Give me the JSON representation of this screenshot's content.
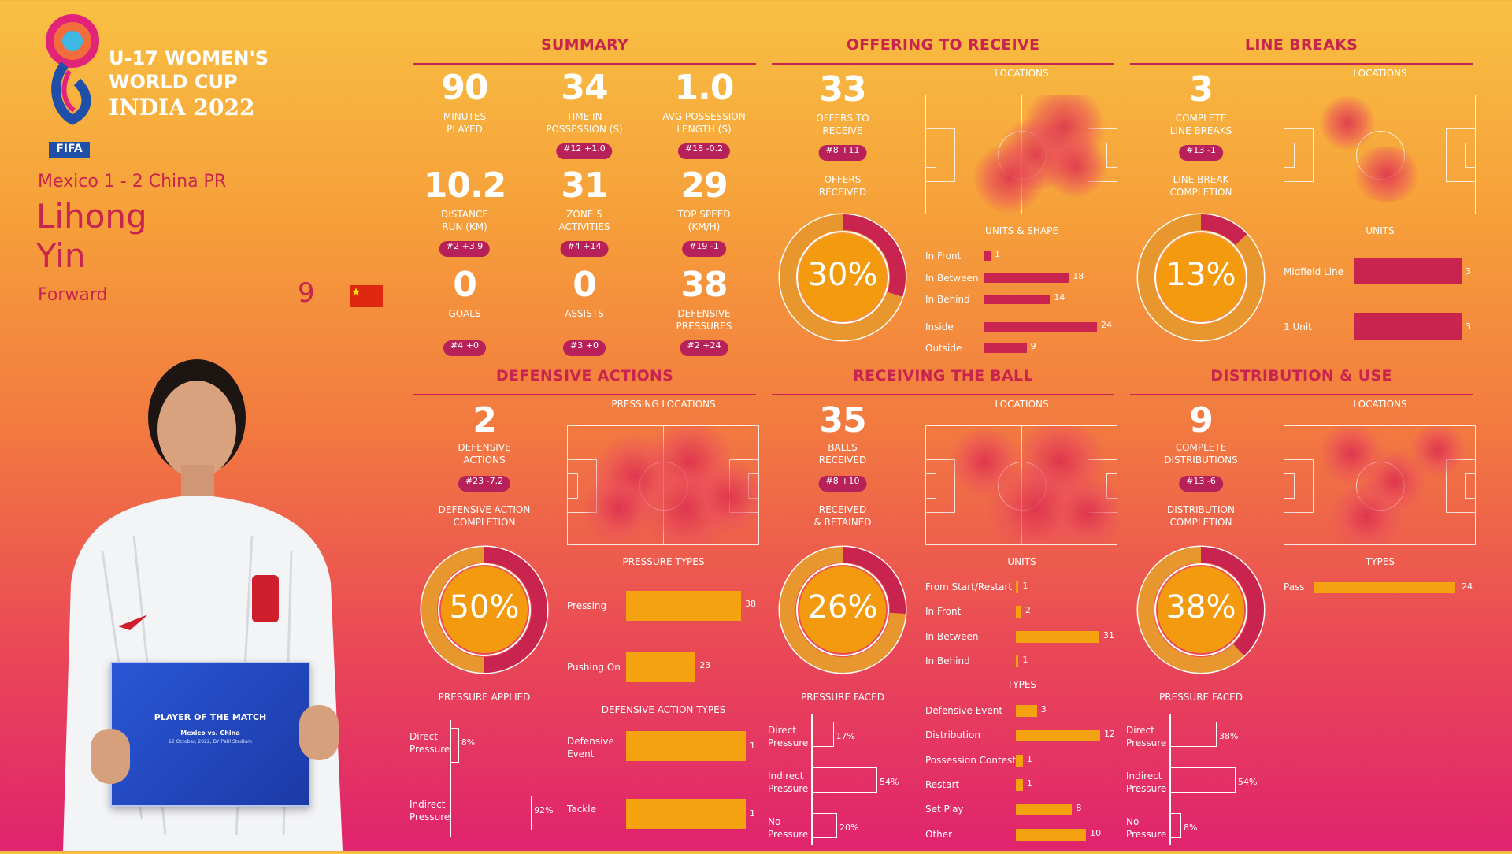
{
  "tournament": {
    "line1": "U-17 WOMEN'S",
    "line2": "WORLD CUP",
    "line3": "INDIA 2022",
    "logo_text": "FIFA"
  },
  "match": "Mexico 1 - 2 China PR",
  "player": {
    "first_name": "Lihong",
    "last_name": "Yin",
    "position": "Forward",
    "number": "9",
    "flag": "china-flag"
  },
  "potm_card": {
    "title": "PLAYER OF THE MATCH",
    "match": "Mexico vs. China",
    "date": "12 October, 2022, DY Patil Stadium"
  },
  "colors": {
    "accent": "#c8244f",
    "bar": "#f4a20f",
    "ring_magenta": "#c8244f",
    "ring_orange": "#e8962e"
  },
  "summary": {
    "title": "SUMMARY",
    "stats": [
      {
        "value": "90",
        "label1": "MINUTES",
        "label2": "PLAYED",
        "rank": ""
      },
      {
        "value": "34",
        "label1": "TIME IN",
        "label2": "POSSESSION (s)",
        "rank": "#12 +1.0"
      },
      {
        "value": "1.0",
        "label1": "AVG POSSESSION",
        "label2": "LENGTH (s)",
        "rank": "#18 -0.2"
      },
      {
        "value": "10.2",
        "label1": "DISTANCE",
        "label2": "RUN (KM)",
        "rank": "#2 +3.9"
      },
      {
        "value": "31",
        "label1": "ZONE 5",
        "label2": "ACTIVITIES",
        "rank": "#4 +14"
      },
      {
        "value": "29",
        "label1": "TOP SPEED",
        "label2": "(KM/H)",
        "rank": "#19 -1"
      },
      {
        "value": "0",
        "label1": "GOALS",
        "label2": "",
        "rank": "#4 +0"
      },
      {
        "value": "0",
        "label1": "ASSISTS",
        "label2": "",
        "rank": "#3 +0"
      },
      {
        "value": "38",
        "label1": "DEFENSIVE",
        "label2": "PRESSURES",
        "rank": "#2 +24"
      }
    ]
  },
  "offering": {
    "title": "OFFERING TO RECEIVE",
    "value": "33",
    "label1": "OFFERS TO",
    "label2": "RECEIVE",
    "rank": "#8 +11",
    "ring_label1": "OFFERS",
    "ring_label2": "RECEIVED",
    "ring_pct": "30%",
    "ring_fraction": 0.3,
    "locations": "LOCATIONS",
    "units_title": "UNITS & SHAPE",
    "bars": [
      {
        "label": "In Front",
        "value": 1
      },
      {
        "label": "In Between",
        "value": 18
      },
      {
        "label": "In Behind",
        "value": 14
      },
      {
        "label": "Inside",
        "value": 24
      },
      {
        "label": "Outside",
        "value": 9
      }
    ]
  },
  "line_breaks": {
    "title": "LINE BREAKS",
    "value": "3",
    "label1": "COMPLETE",
    "label2": "LINE BREAKS",
    "rank": "#13 -1",
    "ring_label1": "LINE BREAK",
    "ring_label2": "COMPLETION",
    "ring_pct": "13%",
    "ring_fraction": 0.13,
    "locations": "LOCATIONS",
    "units_title": "UNITS",
    "bars": [
      {
        "label": "Midfield Line",
        "value": 3
      },
      {
        "label": "1 Unit",
        "value": 3
      }
    ]
  },
  "defensive": {
    "title": "DEFENSIVE ACTIONS",
    "value": "2",
    "label1": "DEFENSIVE",
    "label2": "ACTIONS",
    "rank": "#23 -7.2",
    "ring_label1": "DEFENSIVE ACTION",
    "ring_label2": "COMPLETION",
    "ring_pct": "50%",
    "ring_fraction": 0.5,
    "pressing_locations": "PRESSING LOCATIONS",
    "pressure_types_title": "PRESSURE TYPES",
    "pressure_types": [
      {
        "label": "Pressing",
        "value": 38
      },
      {
        "label": "Pushing On",
        "value": 23
      }
    ],
    "pressure_applied_title": "PRESSURE APPLIED",
    "pressure_applied": [
      {
        "label1": "Direct",
        "label2": "Pressure",
        "value": "8%",
        "fraction": 0.08
      },
      {
        "label1": "Indirect",
        "label2": "Pressure",
        "value": "92%",
        "fraction": 0.92
      }
    ],
    "action_types_title": "DEFENSIVE ACTION TYPES",
    "action_types": [
      {
        "label1": "Defensive",
        "label2": "Event",
        "value": 1
      },
      {
        "label1": "Tackle",
        "label2": "",
        "value": 1
      }
    ]
  },
  "receiving": {
    "title": "RECEIVING THE BALL",
    "value": "35",
    "label1": "BALLS",
    "label2": "RECEIVED",
    "rank": "#8 +10",
    "ring_label1": "RECEIVED",
    "ring_label2": "& RETAINED",
    "ring_pct": "26%",
    "ring_fraction": 0.26,
    "locations": "LOCATIONS",
    "units_title": "UNITS",
    "units": [
      {
        "label": "From Start/Restart",
        "value": 1
      },
      {
        "label": "In Front",
        "value": 2
      },
      {
        "label": "In Between",
        "value": 31
      },
      {
        "label": "In Behind",
        "value": 1
      }
    ],
    "types_title": "TYPES",
    "types": [
      {
        "label": "Defensive Event",
        "value": 3
      },
      {
        "label": "Distribution",
        "value": 12
      },
      {
        "label": "Possession Contest",
        "value": 1
      },
      {
        "label": "Restart",
        "value": 1
      },
      {
        "label": "Set Play",
        "value": 8
      },
      {
        "label": "Other",
        "value": 10
      }
    ],
    "pressure_faced_title": "PRESSURE FACED",
    "pressure_faced": [
      {
        "label1": "Direct",
        "label2": "Pressure",
        "value": "17%",
        "fraction": 0.17
      },
      {
        "label1": "Indirect",
        "label2": "Pressure",
        "value": "54%",
        "fraction": 0.54
      },
      {
        "label1": "No",
        "label2": "Pressure",
        "value": "20%",
        "fraction": 0.2
      }
    ]
  },
  "distribution": {
    "title": "DISTRIBUTION & USE",
    "value": "9",
    "label1": "COMPLETE",
    "label2": "DISTRIBUTIONS",
    "rank": "#13 -6",
    "ring_label1": "DISTRIBUTION",
    "ring_label2": "COMPLETION",
    "ring_pct": "38%",
    "ring_fraction": 0.38,
    "locations": "LOCATIONS",
    "types_title": "TYPES",
    "types": [
      {
        "label": "Pass",
        "value": 24
      }
    ],
    "pressure_faced_title": "PRESSURE FACED",
    "pressure_faced": [
      {
        "label1": "Direct",
        "label2": "Pressure",
        "value": "38%",
        "fraction": 0.38
      },
      {
        "label1": "Indirect",
        "label2": "Pressure",
        "value": "54%",
        "fraction": 0.54
      },
      {
        "label1": "No",
        "label2": "Pressure",
        "value": "8%",
        "fraction": 0.08
      }
    ]
  }
}
